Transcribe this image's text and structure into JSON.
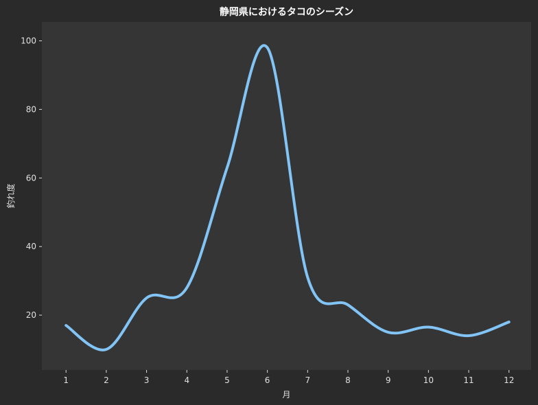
{
  "chart_data": {
    "type": "line",
    "title": "静岡県におけるタコのシーズン",
    "xlabel": "月",
    "ylabel": "釣れ度",
    "x": [
      1,
      2,
      3,
      4,
      5,
      6,
      7,
      8,
      9,
      10,
      11,
      12
    ],
    "x_tick_labels": [
      "1",
      "2",
      "3",
      "4",
      "5",
      "6",
      "7",
      "8",
      "9",
      "10",
      "11",
      "12"
    ],
    "y_ticks": [
      20,
      40,
      60,
      80,
      100
    ],
    "y_tick_labels": [
      "20",
      "40",
      "60",
      "80",
      "100"
    ],
    "xlim": [
      0.4,
      12.55
    ],
    "ylim": [
      4,
      105.5
    ],
    "grid": false,
    "smooth": true,
    "series": [
      {
        "values": [
          17,
          10,
          25,
          28,
          63,
          98,
          31,
          23,
          15,
          16.5,
          14,
          18
        ]
      }
    ],
    "colors": {
      "background": "#2a2a2a",
      "plot_area": "#353535",
      "line": "#82c4f5",
      "text": "#e0e0e0",
      "title": "#ffffff"
    }
  }
}
